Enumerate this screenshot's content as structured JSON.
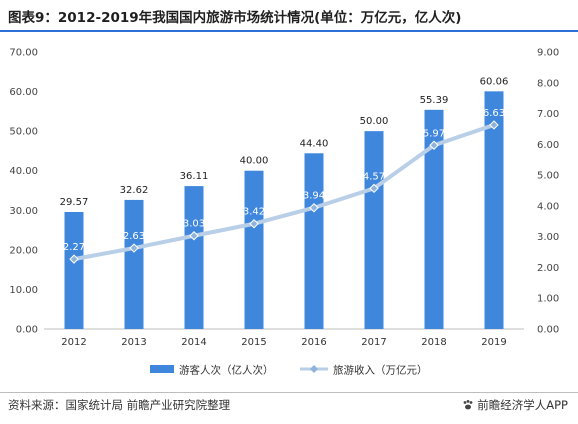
{
  "title": "图表9：2012-2019年我国国内旅游市场统计情况(单位：万亿元，亿人次)",
  "footer": {
    "source": "资料来源：国家统计局 前瞻产业研究院整理",
    "brand": "前瞻经济学人APP",
    "brand_icon": "paw-icon"
  },
  "colors": {
    "bar": "#3f86dd",
    "line": "#b9cfe8",
    "marker": "#8fb3da",
    "title_rule": "#2f6fd6"
  },
  "chart_data": {
    "type": "bar+line",
    "title": "图表9：2012-2019年我国国内旅游市场统计情况(单位：万亿元，亿人次)",
    "categories": [
      "2012",
      "2013",
      "2014",
      "2015",
      "2016",
      "2017",
      "2018",
      "2019"
    ],
    "series": [
      {
        "name": "游客人次（亿人次）",
        "type": "bar",
        "axis": "left",
        "values": [
          29.57,
          32.62,
          36.11,
          40.0,
          44.4,
          50.0,
          55.39,
          60.06
        ],
        "labels": [
          "29.57",
          "32.62",
          "36.11",
          "40.00",
          "44.40",
          "50.00",
          "55.39",
          "60.06"
        ]
      },
      {
        "name": "旅游收入（万亿元）",
        "type": "line",
        "axis": "right",
        "values": [
          2.27,
          2.63,
          3.03,
          3.42,
          3.94,
          4.57,
          5.97,
          6.63
        ],
        "labels": [
          "2.27",
          "2.63",
          "3.03",
          "3.42",
          "3.94",
          "4.57",
          "5.97",
          "6.63"
        ]
      }
    ],
    "y_left": {
      "ylim": [
        0,
        70
      ],
      "ticks": [
        "0.00",
        "10.00",
        "20.00",
        "30.00",
        "40.00",
        "50.00",
        "60.00",
        "70.00"
      ]
    },
    "y_right": {
      "ylim": [
        0,
        9
      ],
      "ticks": [
        "0.00",
        "1.00",
        "2.00",
        "3.00",
        "4.00",
        "5.00",
        "6.00",
        "7.00",
        "8.00",
        "9.00"
      ]
    },
    "grid": false,
    "legend": "bottom-center"
  }
}
